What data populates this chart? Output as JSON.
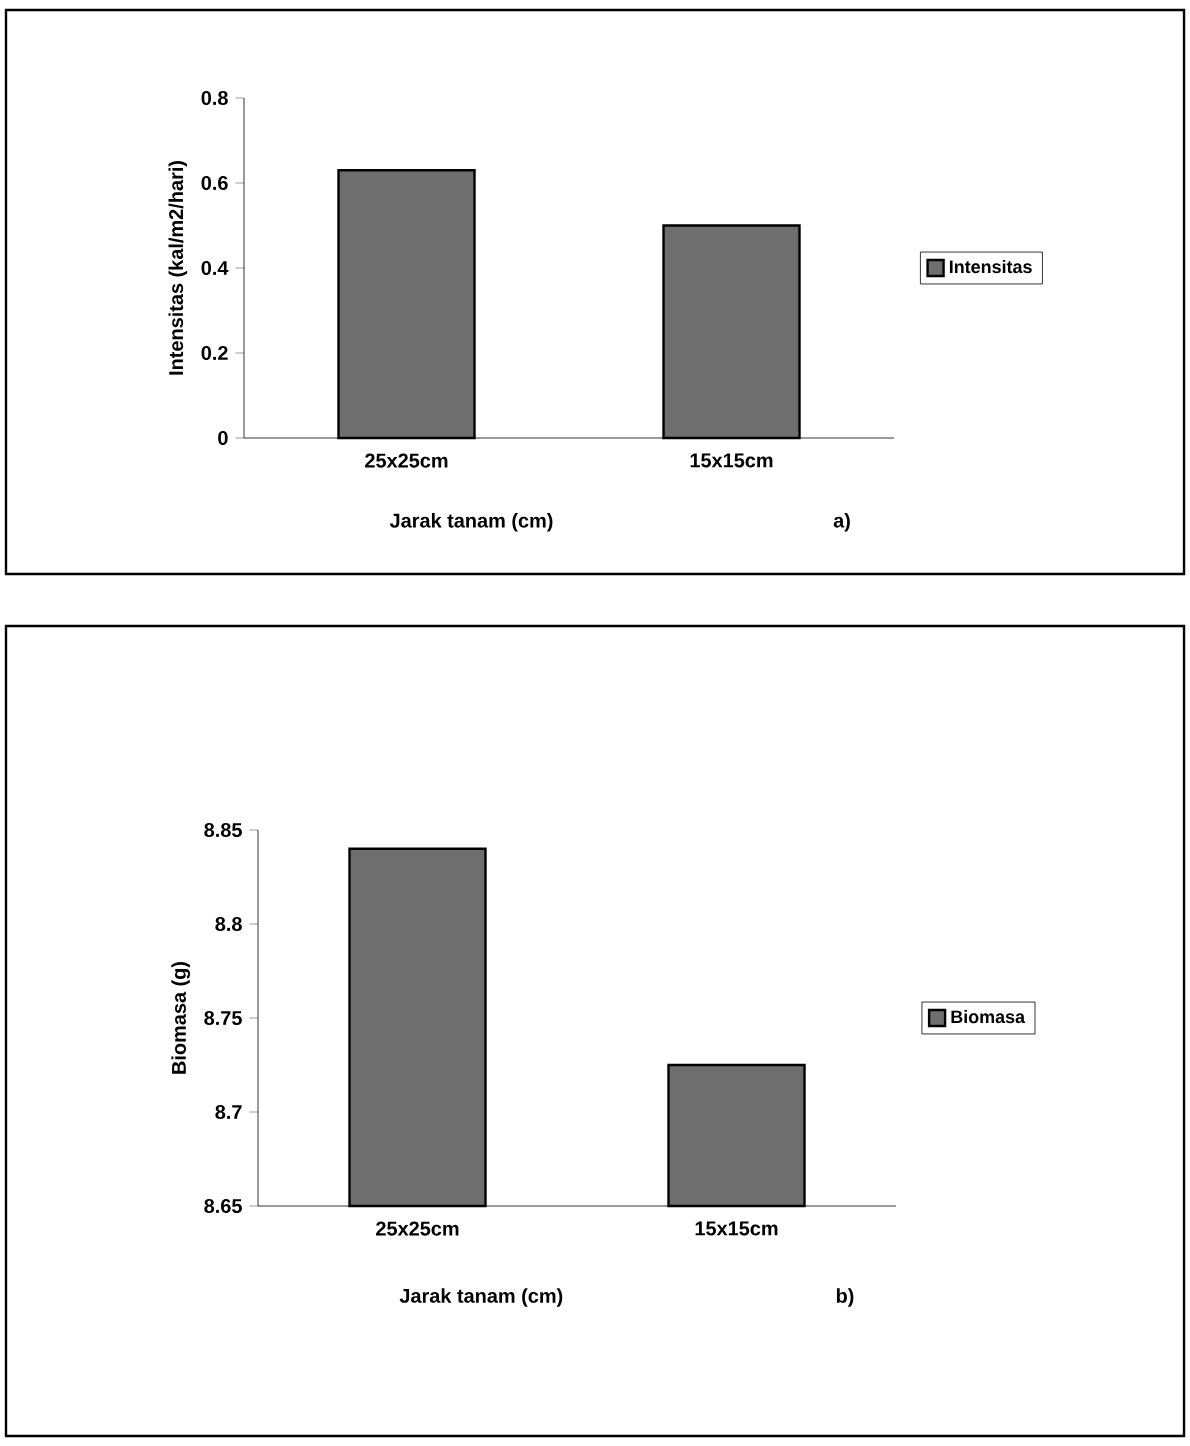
{
  "chart_data": [
    {
      "type": "bar",
      "categories": [
        "25x25cm",
        "15x15cm"
      ],
      "series": [
        {
          "name": "Intensitas",
          "color": "#6e6e6e",
          "values": [
            0.63,
            0.5
          ]
        }
      ],
      "xlabel": "Jarak tanam (cm)",
      "ylabel": "Intensitas (kal/m2/hari)",
      "annotations": [
        "a)"
      ],
      "ylim": [
        0,
        0.8
      ],
      "yticks": [
        0,
        0.2,
        0.4,
        0.6,
        0.8
      ],
      "legend": "right"
    },
    {
      "type": "bar",
      "categories": [
        "25x25cm",
        "15x15cm"
      ],
      "series": [
        {
          "name": "Biomasa",
          "color": "#6e6e6e",
          "values": [
            8.84,
            8.725
          ]
        }
      ],
      "xlabel": "Jarak tanam (cm)",
      "ylabel": "Biomasa (g)",
      "annotations": [
        "b)"
      ],
      "ylim": [
        8.65,
        8.85
      ],
      "yticks": [
        8.65,
        8.7,
        8.75,
        8.8,
        8.85
      ],
      "legend": "right"
    }
  ]
}
